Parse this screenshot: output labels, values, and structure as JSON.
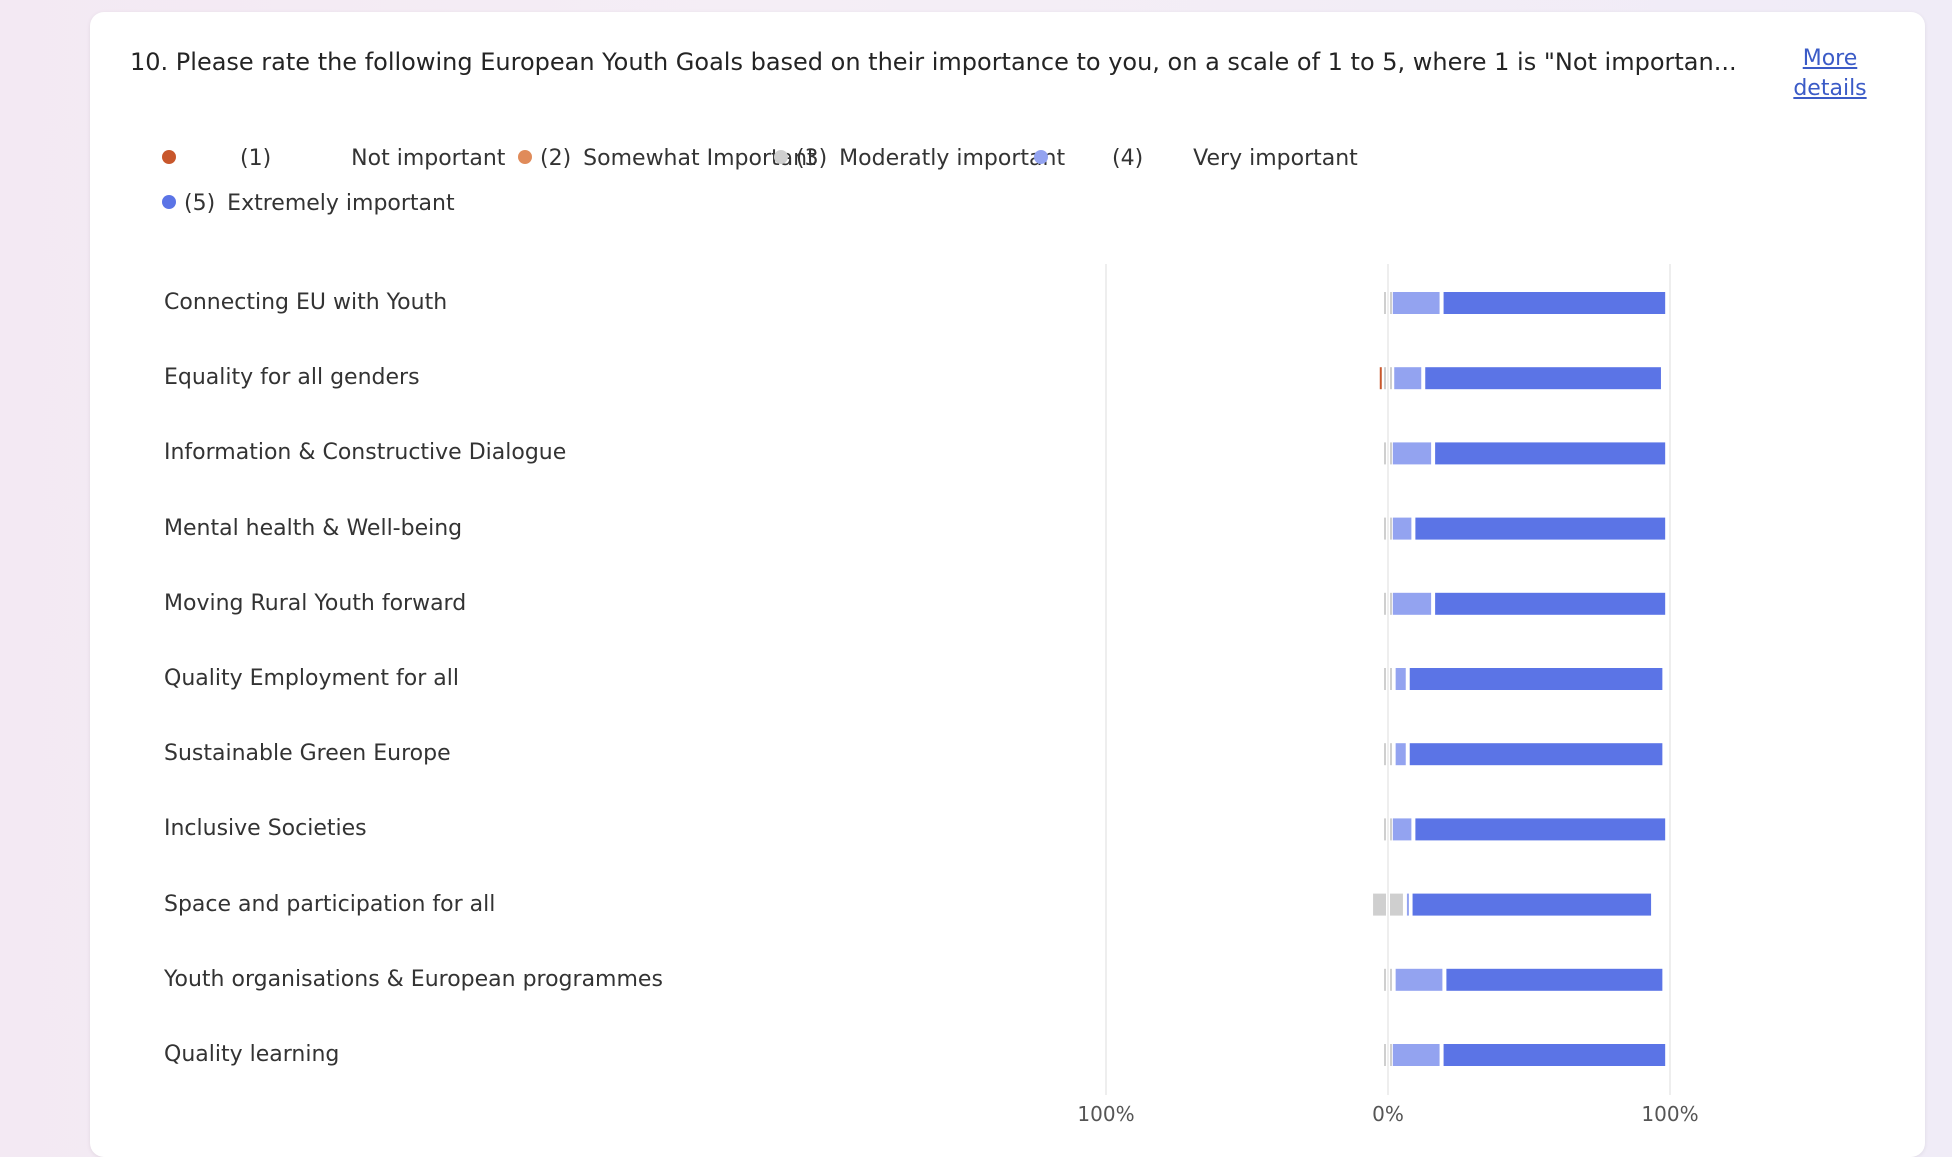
{
  "question": {
    "title": "10. Please rate the following European Youth Goals based on their importance to you, on a scale of 1 to 5, where 1 is \"Not importan...",
    "more_label": "More details"
  },
  "colors": {
    "c1": "#c8572c",
    "c2": "#e08b5a",
    "c3": "#cfcfcf",
    "c4": "#93a3f0",
    "c5": "#5b74e6",
    "axis": "#dcdcdc",
    "tick": "#555555"
  },
  "legend": [
    {
      "num": "(1)",
      "label": "Not important",
      "color_key": "c1"
    },
    {
      "num": "(2)",
      "label": "Somewhat Important",
      "color_key": "c2"
    },
    {
      "num": "(3)",
      "label": "Moderatly important",
      "color_key": "c3"
    },
    {
      "num": "(4)",
      "label": "Very important",
      "color_key": "c4"
    },
    {
      "num": "(5)",
      "label": "Extremely important",
      "color_key": "c5"
    }
  ],
  "chart_data": {
    "type": "bar",
    "orientation": "horizontal-diverging-stacked",
    "x_ticks": [
      "100%",
      "0%",
      "100%"
    ],
    "xlim": [
      -100,
      100
    ],
    "categories": [
      "Connecting EU with Youth",
      "Equality for all genders",
      "Information & Constructive Dialogue",
      "Mental health & Well-being",
      "Moving Rural Youth forward",
      "Quality Employment for all",
      "Sustainable Green Europe",
      "Inclusive Societies",
      "Space and participation for all",
      "Youth organisations & European programmes",
      "Quality learning"
    ],
    "series": [
      {
        "name": "(1) Not important",
        "color_key": "c1",
        "values": [
          0,
          1,
          0,
          0,
          0,
          0,
          0,
          0,
          0,
          0,
          0
        ]
      },
      {
        "name": "(2) Somewhat Important",
        "color_key": "c2",
        "values": [
          0,
          0,
          0,
          0,
          0,
          0,
          0,
          0,
          0,
          0,
          0
        ]
      },
      {
        "name": "(3) Moderatly important",
        "color_key": "c3",
        "values": [
          2,
          3,
          2,
          2,
          2,
          4,
          4,
          2,
          12,
          4,
          2
        ]
      },
      {
        "name": "(4) Very important",
        "color_key": "c4",
        "values": [
          18,
          11,
          15,
          8,
          15,
          5,
          5,
          8,
          2,
          18,
          18
        ]
      },
      {
        "name": "(5) Extremely important",
        "color_key": "c5",
        "values": [
          80,
          85,
          83,
          90,
          83,
          91,
          91,
          90,
          86,
          78,
          80
        ]
      }
    ]
  }
}
